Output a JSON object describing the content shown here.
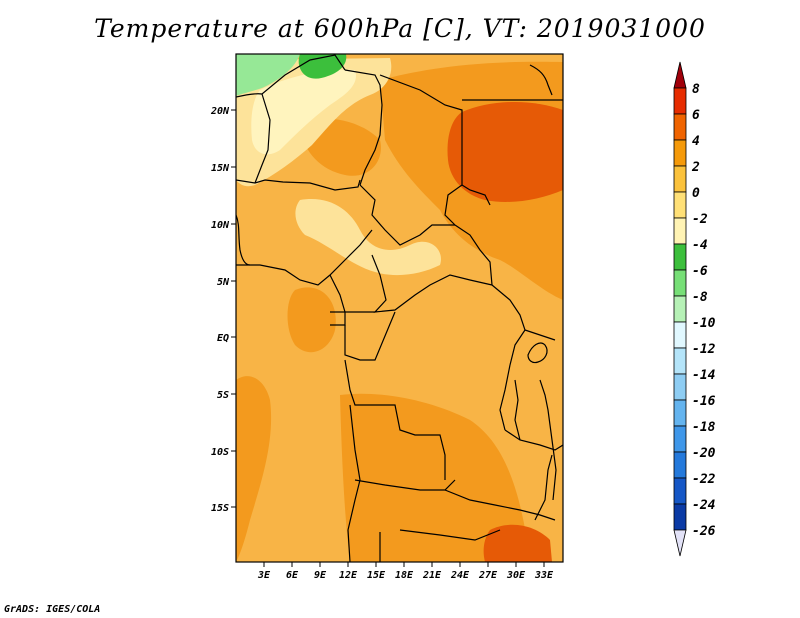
{
  "title": "Temperature at 600hPa [C], VT: 2019031000",
  "credit": "GrADS: IGES/COLA",
  "map": {
    "lon_labels": [
      "3E",
      "6E",
      "9E",
      "12E",
      "15E",
      "18E",
      "21E",
      "24E",
      "27E",
      "30E",
      "33E"
    ],
    "lat_labels": [
      "20N",
      "15N",
      "10N",
      "5N",
      "EQ",
      "5S",
      "10S",
      "15S"
    ]
  },
  "colorbar": {
    "levels": [
      "8",
      "6",
      "4",
      "2",
      "0",
      "-2",
      "-4",
      "-6",
      "-8",
      "-10",
      "-12",
      "-14",
      "-16",
      "-18",
      "-20",
      "-22",
      "-24",
      "-26"
    ],
    "colors": [
      "#a0000a",
      "#e62c00",
      "#f06400",
      "#f59a0a",
      "#fbc23c",
      "#ffe077",
      "#fff3b4",
      "#3cbf3c",
      "#77df77",
      "#b6f1b6",
      "#e1f8ff",
      "#b4e4f9",
      "#8ecdf3",
      "#64b4ef",
      "#3f97e9",
      "#2479db",
      "#1557c6",
      "#0a3aa5",
      "#051575",
      "#e2e2f7"
    ]
  },
  "colors": {
    "land_base": "#f8b446",
    "warm": "#f39a1e",
    "hot": "#e65a06",
    "cool": "#fde39a",
    "coolest": "#fff4be",
    "green_light": "#96e896",
    "green": "#3cbf3c"
  }
}
